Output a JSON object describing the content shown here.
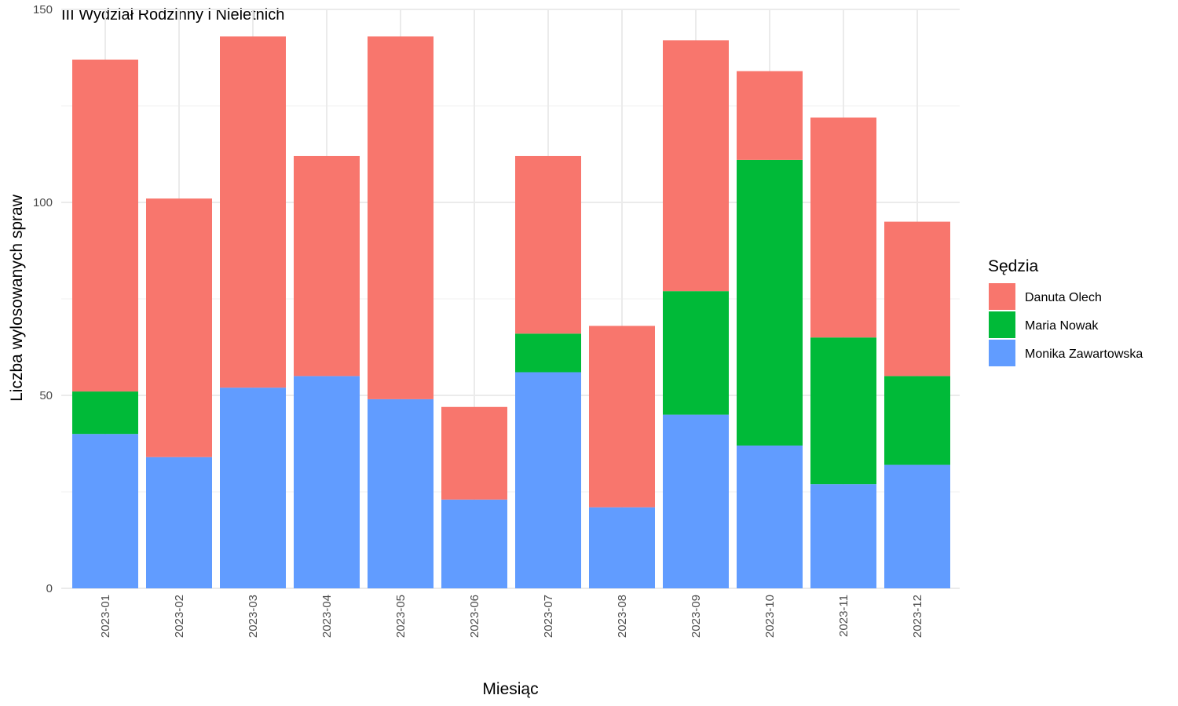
{
  "chart_data": {
    "type": "bar",
    "stacked": true,
    "title": "III Wydział Rodzinny i Nieletnich",
    "xlabel": "Miesiąc",
    "ylabel": "Liczba wylosowanych spraw",
    "ylim": [
      0,
      150
    ],
    "yticks": [
      0,
      50,
      100,
      150
    ],
    "grid": true,
    "legend_position": "right",
    "legend_title": "Sędzia",
    "categories": [
      "2023-01",
      "2023-02",
      "2023-03",
      "2023-04",
      "2023-05",
      "2023-06",
      "2023-07",
      "2023-08",
      "2023-09",
      "2023-10",
      "2023-11",
      "2023-12"
    ],
    "series": [
      {
        "name": "Monika Zawartowska",
        "color": "#619CFF",
        "values": [
          40,
          34,
          52,
          55,
          49,
          23,
          56,
          21,
          45,
          37,
          27,
          32
        ]
      },
      {
        "name": "Maria Nowak",
        "color": "#00BA38",
        "values": [
          11,
          0,
          0,
          0,
          0,
          0,
          10,
          0,
          32,
          74,
          38,
          23
        ]
      },
      {
        "name": "Danuta Olech",
        "color": "#F8766D",
        "values": [
          86,
          67,
          91,
          57,
          94,
          24,
          46,
          47,
          65,
          23,
          57,
          40
        ]
      }
    ],
    "legend_order": [
      "Danuta Olech",
      "Maria Nowak",
      "Monika Zawartowska"
    ]
  }
}
